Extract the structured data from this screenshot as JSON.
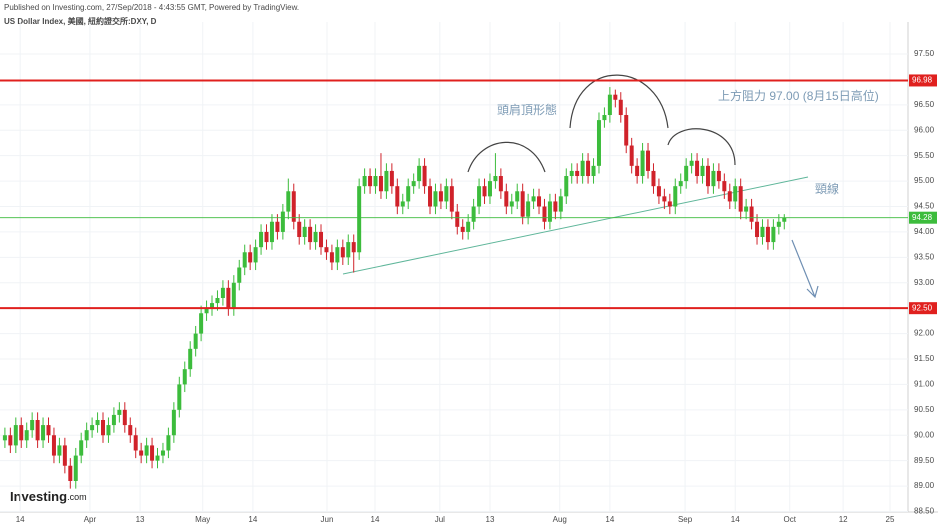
{
  "header": {
    "publisher": "Published on Investing.com, 27/Sep/2018 - 4:43:55 GMT, Powered by TradingView.",
    "symbol": "US Dollar Index, 美國, 紐約證交所:DXY, D",
    "logo": "Investing",
    "logo_suffix": ".com"
  },
  "chart_data": {
    "type": "candlestick",
    "up_color": "#3cbc3c",
    "down_color": "#d0222a",
    "grid": true,
    "xlim": [
      -0.9,
      165.7
    ],
    "ylim": [
      88.49,
      98.13
    ],
    "xticks": [
      {
        "value": 2.8,
        "label": "14"
      },
      {
        "value": 15.6,
        "label": "Apr"
      },
      {
        "value": 24.8,
        "label": "13"
      },
      {
        "value": 36.3,
        "label": "May"
      },
      {
        "value": 45.5,
        "label": "14"
      },
      {
        "value": 59.1,
        "label": "Jun"
      },
      {
        "value": 67.9,
        "label": "14"
      },
      {
        "value": 79.8,
        "label": "Jul"
      },
      {
        "value": 89,
        "label": "13"
      },
      {
        "value": 101.8,
        "label": "Aug"
      },
      {
        "value": 111,
        "label": "14"
      },
      {
        "value": 124.8,
        "label": "Sep"
      },
      {
        "value": 134,
        "label": "14"
      },
      {
        "value": 144,
        "label": "Oct"
      },
      {
        "value": 153.8,
        "label": "12"
      },
      {
        "value": 162.4,
        "label": "25"
      }
    ],
    "yticks": [
      {
        "value": 88.5,
        "label": "88.50"
      },
      {
        "value": 89,
        "label": "89.00"
      },
      {
        "value": 89.5,
        "label": "89.50"
      },
      {
        "value": 90,
        "label": "90.00"
      },
      {
        "value": 90.5,
        "label": "90.50"
      },
      {
        "value": 91,
        "label": "91.00"
      },
      {
        "value": 91.5,
        "label": "91.50"
      },
      {
        "value": 92,
        "label": "92.00"
      },
      {
        "value": 93,
        "label": "93.00"
      },
      {
        "value": 93.5,
        "label": "93.50"
      },
      {
        "value": 94,
        "label": "94.00"
      },
      {
        "value": 94.5,
        "label": "94.50"
      },
      {
        "value": 95,
        "label": "95.00"
      },
      {
        "value": 95.5,
        "label": "95.50"
      },
      {
        "value": 96,
        "label": "96.00"
      },
      {
        "value": 96.5,
        "label": "96.50"
      },
      {
        "value": 97.5,
        "label": "97.50"
      }
    ],
    "open": [
      89.9,
      90.0,
      89.8,
      90.2,
      89.9,
      90.1,
      90.3,
      89.9,
      90.2,
      90.0,
      89.6,
      89.8,
      89.4,
      89.1,
      89.6,
      89.9,
      90.1,
      90.2,
      90.3,
      90.0,
      90.2,
      90.4,
      90.5,
      90.2,
      90.0,
      89.7,
      89.6,
      89.8,
      89.5,
      89.6,
      89.7,
      90.0,
      90.5,
      91.0,
      91.3,
      91.7,
      92.0,
      92.4,
      92.5,
      92.6,
      92.7,
      92.9,
      92.5,
      93.0,
      93.3,
      93.6,
      93.4,
      93.7,
      94.0,
      93.8,
      94.2,
      94.0,
      94.4,
      94.8,
      94.2,
      93.9,
      94.1,
      93.8,
      94.0,
      93.7,
      93.6,
      93.4,
      93.7,
      93.5,
      93.8,
      93.6,
      94.9,
      95.1,
      94.9,
      95.1,
      94.8,
      95.2,
      94.9,
      94.5,
      94.6,
      94.9,
      95.0,
      95.3,
      94.9,
      94.5,
      94.8,
      94.6,
      94.9,
      94.4,
      94.1,
      94.0,
      94.2,
      94.5,
      94.9,
      94.7,
      95.0,
      95.1,
      94.8,
      94.5,
      94.6,
      94.8,
      94.3,
      94.6,
      94.7,
      94.5,
      94.2,
      94.6,
      94.4,
      94.7,
      95.1,
      95.2,
      95.1,
      95.4,
      95.1,
      95.3,
      96.2,
      96.3,
      96.7,
      96.6,
      96.3,
      95.7,
      95.3,
      95.1,
      95.6,
      95.2,
      94.9,
      94.7,
      94.6,
      94.5,
      94.9,
      95.0,
      95.3,
      95.4,
      95.1,
      95.3,
      94.9,
      95.2,
      95.0,
      94.8,
      94.6,
      94.9,
      94.4,
      94.5,
      94.2,
      93.9,
      94.1,
      93.8,
      94.1,
      94.2
    ],
    "high": [
      90.15,
      90.15,
      90.35,
      90.35,
      90.25,
      90.45,
      90.45,
      90.35,
      90.35,
      90.15,
      89.95,
      89.95,
      89.55,
      89.75,
      90.05,
      90.25,
      90.35,
      90.45,
      90.45,
      90.35,
      90.55,
      90.65,
      90.65,
      90.35,
      90.15,
      89.85,
      89.95,
      89.95,
      89.75,
      89.85,
      90.15,
      90.65,
      91.15,
      91.45,
      91.85,
      92.15,
      92.55,
      92.65,
      92.75,
      92.85,
      93.05,
      93.05,
      93.15,
      93.45,
      93.75,
      93.75,
      93.85,
      94.15,
      94.15,
      94.35,
      94.35,
      94.55,
      95.05,
      94.95,
      94.35,
      94.25,
      94.25,
      94.15,
      94.15,
      93.85,
      93.75,
      93.85,
      93.85,
      93.95,
      93.95,
      95.05,
      95.25,
      95.25,
      95.25,
      95.55,
      95.35,
      95.35,
      95.05,
      94.75,
      95.05,
      95.15,
      95.45,
      95.45,
      95.05,
      94.95,
      94.95,
      95.05,
      95.05,
      94.55,
      94.25,
      94.35,
      94.65,
      95.05,
      95.05,
      95.15,
      95.55,
      95.25,
      94.95,
      94.75,
      94.95,
      94.95,
      94.75,
      94.85,
      94.85,
      94.65,
      94.75,
      94.75,
      94.85,
      95.25,
      95.35,
      95.35,
      95.55,
      95.55,
      95.45,
      96.35,
      96.45,
      96.85,
      96.8,
      96.75,
      96.45,
      95.85,
      95.45,
      95.75,
      95.75,
      95.35,
      95.05,
      94.85,
      94.75,
      95.05,
      95.15,
      95.45,
      95.55,
      95.55,
      95.45,
      95.45,
      95.35,
      95.35,
      95.15,
      94.95,
      95.05,
      95.05,
      94.65,
      94.65,
      94.35,
      94.25,
      94.25,
      94.25,
      94.35,
      94.35
    ],
    "low": [
      89.75,
      89.65,
      89.65,
      89.75,
      89.75,
      89.95,
      89.75,
      89.75,
      89.85,
      89.45,
      89.45,
      89.25,
      88.95,
      88.95,
      89.45,
      89.75,
      89.95,
      90.05,
      89.85,
      89.85,
      90.05,
      90.25,
      90.05,
      89.85,
      89.55,
      89.45,
      89.45,
      89.35,
      89.35,
      89.45,
      89.55,
      89.85,
      90.35,
      90.85,
      91.15,
      91.55,
      91.85,
      92.25,
      92.35,
      92.45,
      92.55,
      92.35,
      92.35,
      92.85,
      93.15,
      93.25,
      93.25,
      93.55,
      93.65,
      93.65,
      93.85,
      93.85,
      94.25,
      94.05,
      93.75,
      93.75,
      93.65,
      93.65,
      93.55,
      93.45,
      93.25,
      93.25,
      93.35,
      93.35,
      93.2,
      93.45,
      94.75,
      94.75,
      94.75,
      94.65,
      94.65,
      94.75,
      94.35,
      94.35,
      94.45,
      94.75,
      94.85,
      94.75,
      94.35,
      94.35,
      94.45,
      94.45,
      94.25,
      93.95,
      93.85,
      93.85,
      94.05,
      94.35,
      94.55,
      94.55,
      94.85,
      94.65,
      94.35,
      94.35,
      94.45,
      94.15,
      94.15,
      94.45,
      94.35,
      94.05,
      94.05,
      94.25,
      94.25,
      94.55,
      94.95,
      94.95,
      94.95,
      94.95,
      94.95,
      95.15,
      96.05,
      96.15,
      96.45,
      96.15,
      95.55,
      95.15,
      94.95,
      94.95,
      95.05,
      94.75,
      94.55,
      94.45,
      94.35,
      94.35,
      94.75,
      94.85,
      95.15,
      94.95,
      94.95,
      94.75,
      94.75,
      94.85,
      94.65,
      94.45,
      94.45,
      94.25,
      94.25,
      94.05,
      93.75,
      93.75,
      93.65,
      93.65,
      93.95,
      94.05
    ],
    "close": [
      90.0,
      89.8,
      90.2,
      89.9,
      90.1,
      90.3,
      89.9,
      90.2,
      90.0,
      89.6,
      89.8,
      89.4,
      89.1,
      89.6,
      89.9,
      90.1,
      90.2,
      90.3,
      90.0,
      90.2,
      90.4,
      90.5,
      90.2,
      90.0,
      89.7,
      89.6,
      89.8,
      89.5,
      89.6,
      89.7,
      90.0,
      90.5,
      91.0,
      91.3,
      91.7,
      92.0,
      92.4,
      92.5,
      92.6,
      92.7,
      92.9,
      92.5,
      93.0,
      93.3,
      93.6,
      93.4,
      93.7,
      94.0,
      93.8,
      94.2,
      94.0,
      94.4,
      94.8,
      94.2,
      93.9,
      94.1,
      93.8,
      94.0,
      93.7,
      93.6,
      93.4,
      93.7,
      93.5,
      93.8,
      93.6,
      94.9,
      95.1,
      94.9,
      95.1,
      94.8,
      95.2,
      94.9,
      94.5,
      94.6,
      94.9,
      95.0,
      95.3,
      94.9,
      94.5,
      94.8,
      94.6,
      94.9,
      94.4,
      94.1,
      94.0,
      94.2,
      94.5,
      94.9,
      94.7,
      95.0,
      95.1,
      94.8,
      94.5,
      94.6,
      94.8,
      94.3,
      94.6,
      94.7,
      94.5,
      94.2,
      94.6,
      94.4,
      94.7,
      95.1,
      95.2,
      95.1,
      95.4,
      95.1,
      95.3,
      96.2,
      96.3,
      96.7,
      96.6,
      96.3,
      95.7,
      95.3,
      95.1,
      95.6,
      95.2,
      94.9,
      94.7,
      94.6,
      94.5,
      94.9,
      95.0,
      95.3,
      95.4,
      95.1,
      95.3,
      94.9,
      95.2,
      95.0,
      94.8,
      94.6,
      94.9,
      94.4,
      94.5,
      94.2,
      93.9,
      94.1,
      93.8,
      94.1,
      94.2,
      94.28
    ],
    "hlines": [
      {
        "value": 96.98,
        "label": "96.98",
        "color": "#e0201e"
      },
      {
        "value": 92.5,
        "label": "92.50",
        "color": "#e0201e"
      },
      {
        "value": 94.28,
        "label": "94.28",
        "color": "#3cbc3c"
      }
    ],
    "annotations": [
      "上方阻力 97.00 (8月15日高位)",
      "頭肩頂形態",
      "頸線"
    ]
  }
}
